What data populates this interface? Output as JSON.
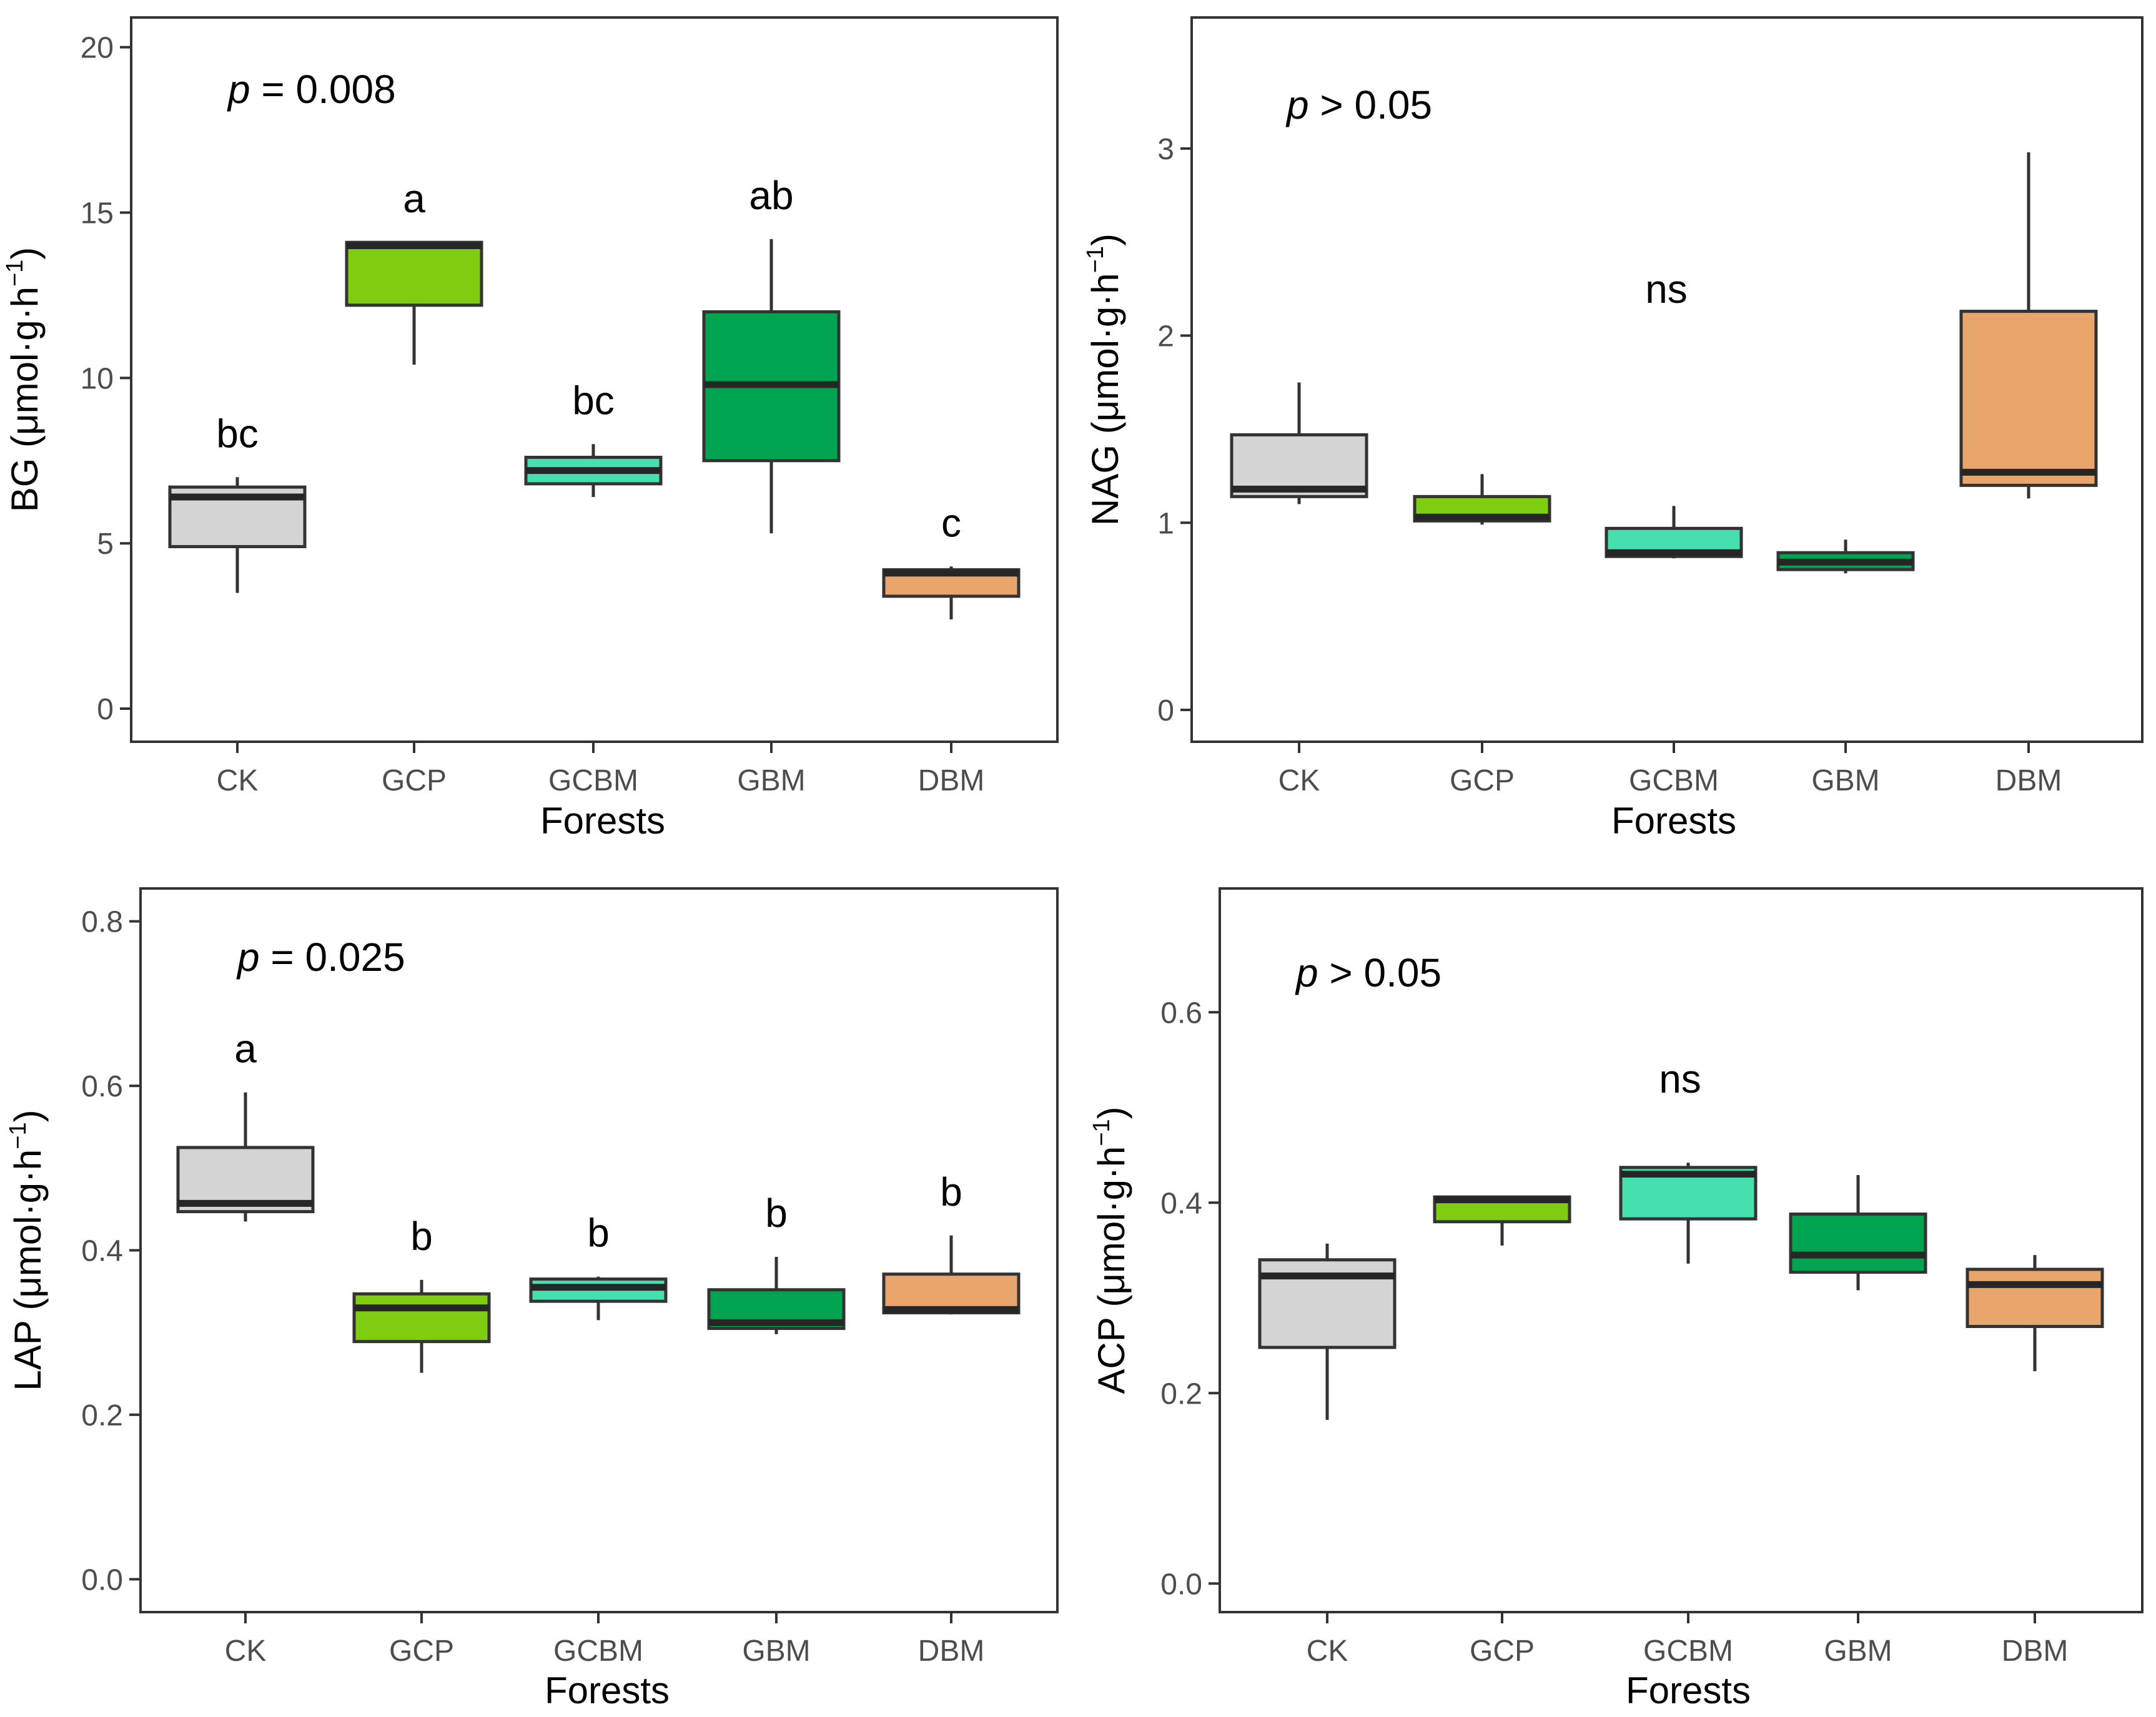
{
  "colors": {
    "CK": "#d4d4d4",
    "GCP": "#7fcd11",
    "GCBM": "#46dfb0",
    "GBM": "#00a450",
    "DBM": "#e8a56c"
  },
  "chart_data": [
    {
      "type": "box",
      "xlabel": "Forests",
      "ylabel_main": "BG (μmol·g·h",
      "ylabel_sup": "−1",
      "ylabel_end": ")",
      "ylim": [
        -1,
        20.9
      ],
      "yticks": [
        0,
        5,
        10,
        15,
        20
      ],
      "ytick_labels": [
        "0",
        "5",
        "10",
        "15",
        "20"
      ],
      "p_italic": "p",
      "p_text": " = 0.008",
      "categories": [
        "CK",
        "GCP",
        "GCBM",
        "GBM",
        "DBM"
      ],
      "boxes": [
        {
          "min": 3.5,
          "q1": 4.9,
          "median": 6.4,
          "q3": 6.7,
          "max": 7.0
        },
        {
          "min": 10.4,
          "q1": 12.2,
          "median": 14.0,
          "q3": 14.1,
          "max": 14.1
        },
        {
          "min": 6.4,
          "q1": 6.8,
          "median": 7.2,
          "q3": 7.6,
          "max": 8.0
        },
        {
          "min": 5.3,
          "q1": 7.5,
          "median": 9.8,
          "q3": 12.0,
          "max": 14.2
        },
        {
          "min": 2.7,
          "q1": 3.4,
          "median": 4.1,
          "q3": 4.2,
          "max": 4.3
        }
      ],
      "labels": [
        "bc",
        "a",
        "bc",
        "ab",
        "c"
      ]
    },
    {
      "type": "box",
      "xlabel": "Forests",
      "ylabel_main": "NAG (μmol·g·h",
      "ylabel_sup": "−1",
      "ylabel_end": ")",
      "ylim": [
        -0.17,
        3.7
      ],
      "yticks": [
        0,
        1,
        2,
        3
      ],
      "ytick_labels": [
        "0",
        "1",
        "2",
        "3"
      ],
      "p_italic": "p",
      "p_text": " > 0.05",
      "categories": [
        "CK",
        "GCP",
        "GCBM",
        "GBM",
        "DBM"
      ],
      "boxes": [
        {
          "min": 1.1,
          "q1": 1.14,
          "median": 1.18,
          "q3": 1.47,
          "max": 1.75
        },
        {
          "min": 0.99,
          "q1": 1.01,
          "median": 1.03,
          "q3": 1.14,
          "max": 1.26
        },
        {
          "min": 0.81,
          "q1": 0.82,
          "median": 0.84,
          "q3": 0.97,
          "max": 1.09
        },
        {
          "min": 0.73,
          "q1": 0.75,
          "median": 0.79,
          "q3": 0.84,
          "max": 0.91
        },
        {
          "min": 1.13,
          "q1": 1.2,
          "median": 1.27,
          "q3": 2.13,
          "max": 2.98
        }
      ],
      "center_label": "ns"
    },
    {
      "type": "box",
      "xlabel": "Forests",
      "ylabel_main": "LAP (μmol·g·h",
      "ylabel_sup": "−1",
      "ylabel_end": ")",
      "ylim": [
        -0.04,
        0.84
      ],
      "yticks": [
        0,
        0.2,
        0.4,
        0.6,
        0.8
      ],
      "ytick_labels": [
        "0.0",
        "0.2",
        "0.4",
        "0.6",
        "0.8"
      ],
      "p_italic": "p",
      "p_text": " = 0.025",
      "categories": [
        "CK",
        "GCP",
        "GCBM",
        "GBM",
        "DBM"
      ],
      "boxes": [
        {
          "min": 0.435,
          "q1": 0.447,
          "median": 0.457,
          "q3": 0.525,
          "max": 0.592
        },
        {
          "min": 0.251,
          "q1": 0.289,
          "median": 0.33,
          "q3": 0.347,
          "max": 0.364
        },
        {
          "min": 0.315,
          "q1": 0.338,
          "median": 0.355,
          "q3": 0.365,
          "max": 0.368
        },
        {
          "min": 0.298,
          "q1": 0.305,
          "median": 0.312,
          "q3": 0.352,
          "max": 0.392
        },
        {
          "min": 0.322,
          "q1": 0.324,
          "median": 0.328,
          "q3": 0.371,
          "max": 0.418
        }
      ],
      "labels": [
        "a",
        "b",
        "b",
        "b",
        "b"
      ]
    },
    {
      "type": "box",
      "xlabel": "Forests",
      "ylabel_main": "ACP (μmol·g·h",
      "ylabel_sup": "−1",
      "ylabel_end": ")",
      "ylim": [
        -0.03,
        0.73
      ],
      "yticks": [
        0,
        0.2,
        0.4,
        0.6
      ],
      "ytick_labels": [
        "0.0",
        "0.2",
        "0.4",
        "0.6"
      ],
      "p_italic": "p",
      "p_text": " > 0.05",
      "categories": [
        "CK",
        "GCP",
        "GCBM",
        "GBM",
        "DBM"
      ],
      "boxes": [
        {
          "min": 0.172,
          "q1": 0.248,
          "median": 0.323,
          "q3": 0.34,
          "max": 0.357
        },
        {
          "min": 0.355,
          "q1": 0.38,
          "median": 0.403,
          "q3": 0.406,
          "max": 0.406
        },
        {
          "min": 0.336,
          "q1": 0.383,
          "median": 0.43,
          "q3": 0.437,
          "max": 0.442
        },
        {
          "min": 0.308,
          "q1": 0.327,
          "median": 0.345,
          "q3": 0.388,
          "max": 0.429
        },
        {
          "min": 0.223,
          "q1": 0.27,
          "median": 0.314,
          "q3": 0.33,
          "max": 0.345
        }
      ],
      "center_label": "ns"
    }
  ]
}
